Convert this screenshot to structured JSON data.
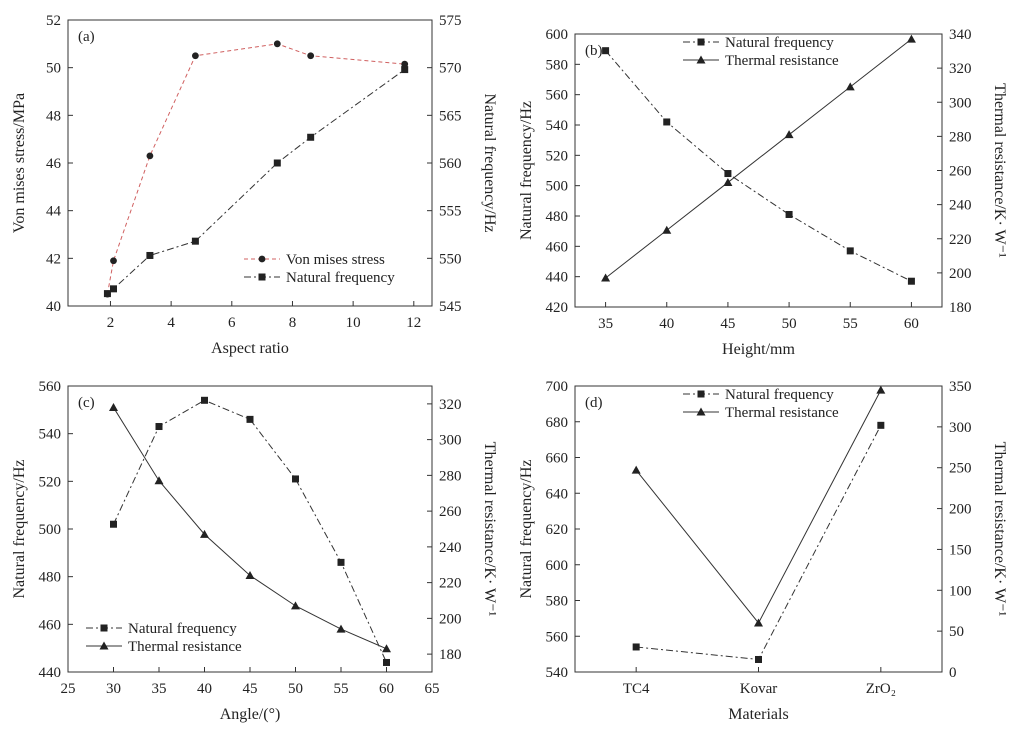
{
  "chart_data": [
    {
      "type": "line",
      "panel_label": "(a)",
      "xlabel": "Aspect ratio",
      "ylabel_left": "Von mises stress/MPa",
      "ylabel_right": "Natural frequency/Hz",
      "xlim": [
        0.6,
        12.6
      ],
      "xticks": [
        "2",
        "4",
        "6",
        "8",
        "10",
        "12"
      ],
      "ylim_left": [
        40,
        52
      ],
      "yticks_left": [
        "40",
        "42",
        "44",
        "46",
        "48",
        "50",
        "52"
      ],
      "ylim_right": [
        545,
        575
      ],
      "yticks_right": [
        "545",
        "550",
        "555",
        "560",
        "565",
        "570",
        "575"
      ],
      "grid": false,
      "legend_position": "bottom-right",
      "series": [
        {
          "name": "Von mises stress",
          "axis": "left",
          "marker": "circle",
          "line_style": "dashed-red",
          "x": [
            1.9,
            2.1,
            3.3,
            4.8,
            7.5,
            8.6,
            11.7
          ],
          "y": [
            40.5,
            41.9,
            46.3,
            50.5,
            51.0,
            50.5,
            50.15
          ]
        },
        {
          "name": "Natural frequency",
          "axis": "right",
          "marker": "square",
          "line_style": "dash-dot",
          "x": [
            1.9,
            2.1,
            3.3,
            4.8,
            7.5,
            8.6,
            11.7
          ],
          "y": [
            546.3,
            546.8,
            550.3,
            551.8,
            560.0,
            562.7,
            569.8
          ]
        }
      ]
    },
    {
      "type": "line",
      "panel_label": "(b)",
      "xlabel": "Height/mm",
      "ylabel_left": "Natural frequency/Hz",
      "ylabel_right": "Thermal resistance/K· W⁻¹",
      "xlim": [
        32.5,
        62.5
      ],
      "xticks": [
        "35",
        "40",
        "45",
        "50",
        "55",
        "60"
      ],
      "ylim_left": [
        420,
        600
      ],
      "yticks_left": [
        "420",
        "440",
        "460",
        "480",
        "500",
        "520",
        "540",
        "560",
        "580",
        "600"
      ],
      "ylim_right": [
        180,
        340
      ],
      "yticks_right": [
        "180",
        "200",
        "220",
        "240",
        "260",
        "280",
        "300",
        "320",
        "340"
      ],
      "grid": false,
      "legend_position": "top-center",
      "series": [
        {
          "name": "Natural frequency",
          "axis": "left",
          "marker": "square",
          "line_style": "dash-dot",
          "x": [
            35,
            40,
            45,
            50,
            55,
            60
          ],
          "y": [
            589,
            542,
            508,
            481,
            457,
            437
          ]
        },
        {
          "name": "Thermal resistance",
          "axis": "right",
          "marker": "triangle",
          "line_style": "solid",
          "x": [
            35,
            40,
            45,
            50,
            55,
            60
          ],
          "y": [
            197,
            225,
            253,
            281,
            309,
            337
          ]
        }
      ]
    },
    {
      "type": "line",
      "panel_label": "(c)",
      "xlabel": "Angle/(°)",
      "ylabel_left": "Natural frequency/Hz",
      "ylabel_right": "Thermal resistance/K· W⁻¹",
      "xlim": [
        25,
        65
      ],
      "xticks": [
        "25",
        "30",
        "35",
        "40",
        "45",
        "50",
        "55",
        "60",
        "65"
      ],
      "ylim_left": [
        440,
        560
      ],
      "yticks_left": [
        "440",
        "460",
        "480",
        "500",
        "520",
        "540",
        "560"
      ],
      "ylim_right": [
        170,
        330
      ],
      "yticks_right": [
        "180",
        "200",
        "220",
        "240",
        "260",
        "280",
        "300",
        "320"
      ],
      "grid": false,
      "legend_position": "bottom-left",
      "series": [
        {
          "name": "Natural frequency",
          "axis": "left",
          "marker": "square",
          "line_style": "dash-dot",
          "x": [
            30,
            35,
            40,
            45,
            50,
            55,
            60
          ],
          "y": [
            502,
            543,
            554,
            546,
            521,
            486,
            444
          ]
        },
        {
          "name": "Thermal resistance",
          "axis": "right",
          "marker": "triangle",
          "line_style": "solid",
          "x": [
            30,
            35,
            40,
            45,
            50,
            55,
            60
          ],
          "y": [
            318,
            277,
            247,
            224,
            207,
            194,
            183
          ]
        }
      ]
    },
    {
      "type": "line",
      "panel_label": "(d)",
      "xlabel": "Materials",
      "ylabel_left": "Natural frequency/Hz",
      "ylabel_right": "Thermal resistance/K· W⁻¹",
      "categories": [
        "TC4",
        "Kovar",
        "ZrO₂"
      ],
      "ylim_left": [
        540,
        700
      ],
      "yticks_left": [
        "540",
        "560",
        "580",
        "600",
        "620",
        "640",
        "660",
        "680",
        "700"
      ],
      "ylim_right": [
        0,
        350
      ],
      "yticks_right": [
        "0",
        "50",
        "100",
        "150",
        "200",
        "250",
        "300",
        "350"
      ],
      "grid": false,
      "legend_position": "top-center",
      "series": [
        {
          "name": "Natural frequency",
          "axis": "left",
          "marker": "square",
          "line_style": "dash-dot",
          "values": [
            554,
            547,
            678
          ]
        },
        {
          "name": "Thermal resistance",
          "axis": "right",
          "marker": "triangle",
          "line_style": "solid",
          "values": [
            247,
            60,
            345
          ]
        }
      ]
    }
  ]
}
